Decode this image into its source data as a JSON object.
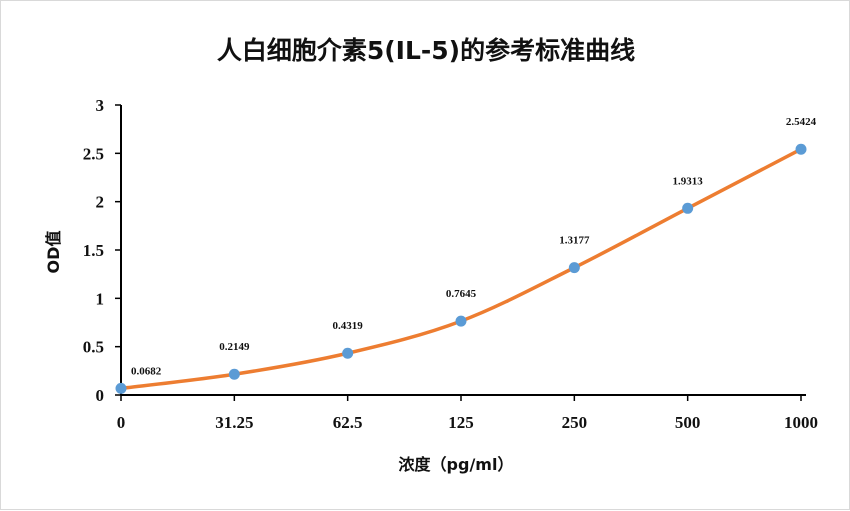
{
  "chart_data": {
    "type": "line",
    "title": "人白细胞介素5(IL-5)的参考标准曲线",
    "xlabel": "浓度（pg/ml）",
    "ylabel": "OD值",
    "categories": [
      "0",
      "31.25",
      "62.5",
      "125",
      "250",
      "500",
      "1000"
    ],
    "series": [
      {
        "values": [
          0.0682,
          0.2149,
          0.4319,
          0.7645,
          1.3177,
          1.9313,
          2.5424
        ]
      }
    ],
    "data_labels": [
      "0.0682",
      "0.2149",
      "0.4319",
      "0.7645",
      "1.3177",
      "1.9313",
      "2.5424"
    ],
    "ylim": [
      0,
      3
    ],
    "yticks": [
      "0",
      "0.5",
      "1",
      "1.5",
      "2",
      "2.5",
      "3"
    ],
    "grid": false,
    "legend": "none",
    "colors": {
      "line": "#ED7D31",
      "marker": "#5B9BD5",
      "axis": "#000000"
    }
  }
}
